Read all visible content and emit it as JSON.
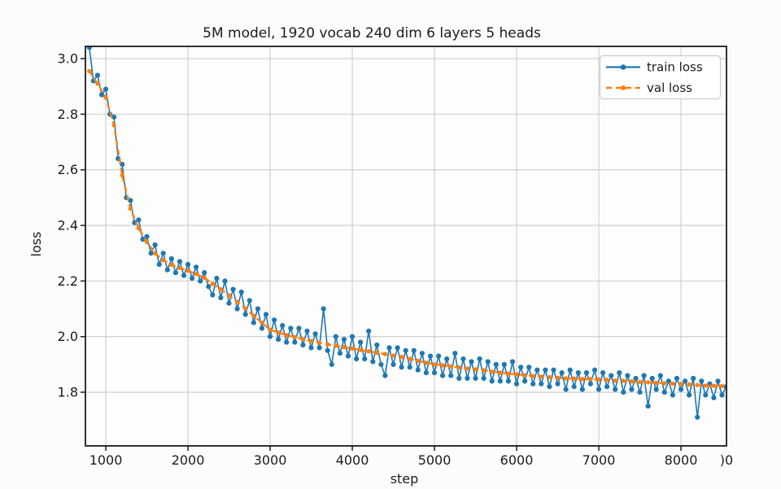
{
  "chart_data": {
    "type": "line",
    "title": "5M model, 1920 vocab 240 dim 6 layers 5 heads",
    "xlabel": "step",
    "ylabel": "loss",
    "xlim": [
      752,
      8554
    ],
    "ylim": [
      1.607,
      3.044
    ],
    "x_ticks": [
      1000,
      2000,
      3000,
      4000,
      5000,
      6000,
      7000,
      8000
    ],
    "x_tick_clipped_label": ")0",
    "y_ticks": [
      1.8,
      2.0,
      2.2,
      2.4,
      2.6,
      2.8,
      3.0
    ],
    "grid": true,
    "grid_color": "#cccccc",
    "spine_color": "#1c1c1c",
    "legend": {
      "position": "upper right",
      "entries": [
        "train loss",
        "val loss"
      ]
    },
    "series": [
      {
        "name": "train loss",
        "color": "#1f77b4",
        "line_style": "solid",
        "marker": "circle",
        "points": [
          [
            800,
            3.04
          ],
          [
            850,
            2.92
          ],
          [
            900,
            2.94
          ],
          [
            950,
            2.87
          ],
          [
            1000,
            2.89
          ],
          [
            1050,
            2.8
          ],
          [
            1100,
            2.79
          ],
          [
            1150,
            2.64
          ],
          [
            1200,
            2.62
          ],
          [
            1250,
            2.5
          ],
          [
            1300,
            2.49
          ],
          [
            1350,
            2.41
          ],
          [
            1400,
            2.42
          ],
          [
            1450,
            2.35
          ],
          [
            1500,
            2.36
          ],
          [
            1550,
            2.3
          ],
          [
            1600,
            2.33
          ],
          [
            1650,
            2.26
          ],
          [
            1700,
            2.3
          ],
          [
            1750,
            2.24
          ],
          [
            1800,
            2.28
          ],
          [
            1850,
            2.23
          ],
          [
            1900,
            2.27
          ],
          [
            1950,
            2.22
          ],
          [
            2000,
            2.26
          ],
          [
            2050,
            2.21
          ],
          [
            2100,
            2.25
          ],
          [
            2150,
            2.2
          ],
          [
            2200,
            2.23
          ],
          [
            2250,
            2.18
          ],
          [
            2300,
            2.15
          ],
          [
            2350,
            2.21
          ],
          [
            2400,
            2.14
          ],
          [
            2450,
            2.2
          ],
          [
            2500,
            2.12
          ],
          [
            2550,
            2.17
          ],
          [
            2600,
            2.1
          ],
          [
            2650,
            2.16
          ],
          [
            2700,
            2.08
          ],
          [
            2750,
            2.13
          ],
          [
            2800,
            2.05
          ],
          [
            2850,
            2.1
          ],
          [
            2900,
            2.03
          ],
          [
            2950,
            2.08
          ],
          [
            3000,
            2.0
          ],
          [
            3050,
            2.06
          ],
          [
            3100,
            1.99
          ],
          [
            3150,
            2.04
          ],
          [
            3200,
            1.98
          ],
          [
            3250,
            2.03
          ],
          [
            3300,
            1.98
          ],
          [
            3350,
            2.03
          ],
          [
            3400,
            1.97
          ],
          [
            3450,
            2.02
          ],
          [
            3500,
            1.96
          ],
          [
            3550,
            2.01
          ],
          [
            3600,
            1.96
          ],
          [
            3650,
            2.1
          ],
          [
            3700,
            1.95
          ],
          [
            3750,
            1.9
          ],
          [
            3800,
            2.0
          ],
          [
            3850,
            1.94
          ],
          [
            3900,
            1.99
          ],
          [
            3950,
            1.93
          ],
          [
            4000,
            2.0
          ],
          [
            4050,
            1.92
          ],
          [
            4100,
            1.98
          ],
          [
            4150,
            1.92
          ],
          [
            4200,
            2.02
          ],
          [
            4250,
            1.91
          ],
          [
            4300,
            1.97
          ],
          [
            4350,
            1.9
          ],
          [
            4400,
            1.86
          ],
          [
            4450,
            1.96
          ],
          [
            4500,
            1.9
          ],
          [
            4550,
            1.96
          ],
          [
            4600,
            1.89
          ],
          [
            4650,
            1.95
          ],
          [
            4700,
            1.89
          ],
          [
            4750,
            1.95
          ],
          [
            4800,
            1.88
          ],
          [
            4850,
            1.94
          ],
          [
            4900,
            1.87
          ],
          [
            4950,
            1.93
          ],
          [
            5000,
            1.87
          ],
          [
            5050,
            1.93
          ],
          [
            5100,
            1.86
          ],
          [
            5150,
            1.92
          ],
          [
            5200,
            1.86
          ],
          [
            5250,
            1.94
          ],
          [
            5300,
            1.85
          ],
          [
            5350,
            1.92
          ],
          [
            5400,
            1.85
          ],
          [
            5450,
            1.91
          ],
          [
            5500,
            1.85
          ],
          [
            5550,
            1.92
          ],
          [
            5600,
            1.85
          ],
          [
            5650,
            1.91
          ],
          [
            5700,
            1.84
          ],
          [
            5750,
            1.9
          ],
          [
            5800,
            1.84
          ],
          [
            5850,
            1.9
          ],
          [
            5900,
            1.84
          ],
          [
            5950,
            1.91
          ],
          [
            6000,
            1.83
          ],
          [
            6050,
            1.89
          ],
          [
            6100,
            1.84
          ],
          [
            6150,
            1.89
          ],
          [
            6200,
            1.83
          ],
          [
            6250,
            1.88
          ],
          [
            6300,
            1.83
          ],
          [
            6350,
            1.88
          ],
          [
            6400,
            1.82
          ],
          [
            6450,
            1.88
          ],
          [
            6500,
            1.83
          ],
          [
            6550,
            1.87
          ],
          [
            6600,
            1.81
          ],
          [
            6650,
            1.88
          ],
          [
            6700,
            1.82
          ],
          [
            6750,
            1.87
          ],
          [
            6800,
            1.81
          ],
          [
            6850,
            1.87
          ],
          [
            6900,
            1.83
          ],
          [
            6950,
            1.88
          ],
          [
            7000,
            1.81
          ],
          [
            7050,
            1.87
          ],
          [
            7100,
            1.82
          ],
          [
            7150,
            1.86
          ],
          [
            7200,
            1.81
          ],
          [
            7250,
            1.87
          ],
          [
            7300,
            1.8
          ],
          [
            7350,
            1.86
          ],
          [
            7400,
            1.81
          ],
          [
            7450,
            1.85
          ],
          [
            7500,
            1.8
          ],
          [
            7550,
            1.86
          ],
          [
            7600,
            1.75
          ],
          [
            7650,
            1.85
          ],
          [
            7700,
            1.81
          ],
          [
            7750,
            1.86
          ],
          [
            7800,
            1.8
          ],
          [
            7850,
            1.84
          ],
          [
            7900,
            1.79
          ],
          [
            7950,
            1.85
          ],
          [
            8000,
            1.81
          ],
          [
            8050,
            1.84
          ],
          [
            8100,
            1.79
          ],
          [
            8150,
            1.85
          ],
          [
            8200,
            1.71
          ],
          [
            8250,
            1.84
          ],
          [
            8300,
            1.79
          ],
          [
            8350,
            1.83
          ],
          [
            8400,
            1.78
          ],
          [
            8450,
            1.84
          ],
          [
            8500,
            1.79
          ],
          [
            8550,
            1.82
          ]
        ]
      },
      {
        "name": "val loss",
        "color": "#ff7f0e",
        "line_style": "dashed",
        "marker": "circle",
        "points": [
          [
            800,
            2.955
          ],
          [
            900,
            2.91
          ],
          [
            1000,
            2.86
          ],
          [
            1100,
            2.76
          ],
          [
            1200,
            2.58
          ],
          [
            1300,
            2.46
          ],
          [
            1400,
            2.39
          ],
          [
            1500,
            2.34
          ],
          [
            1600,
            2.3
          ],
          [
            1700,
            2.275
          ],
          [
            1800,
            2.258
          ],
          [
            1900,
            2.247
          ],
          [
            2000,
            2.237
          ],
          [
            2100,
            2.225
          ],
          [
            2200,
            2.212
          ],
          [
            2300,
            2.19
          ],
          [
            2400,
            2.17
          ],
          [
            2500,
            2.148
          ],
          [
            2600,
            2.125
          ],
          [
            2700,
            2.1
          ],
          [
            2800,
            2.075
          ],
          [
            2900,
            2.05
          ],
          [
            3000,
            2.025
          ],
          [
            3100,
            2.015
          ],
          [
            3200,
            2.005
          ],
          [
            3300,
            1.998
          ],
          [
            3400,
            1.99
          ],
          [
            3500,
            1.984
          ],
          [
            3600,
            1.978
          ],
          [
            3700,
            1.972
          ],
          [
            3800,
            1.967
          ],
          [
            3900,
            1.962
          ],
          [
            4000,
            1.957
          ],
          [
            4100,
            1.952
          ],
          [
            4200,
            1.947
          ],
          [
            4300,
            1.942
          ],
          [
            4400,
            1.937
          ],
          [
            4500,
            1.932
          ],
          [
            4600,
            1.927
          ],
          [
            4700,
            1.92
          ],
          [
            4800,
            1.913
          ],
          [
            4900,
            1.906
          ],
          [
            5000,
            1.9
          ],
          [
            5100,
            1.897
          ],
          [
            5200,
            1.893
          ],
          [
            5300,
            1.889
          ],
          [
            5400,
            1.885
          ],
          [
            5500,
            1.882
          ],
          [
            5600,
            1.879
          ],
          [
            5700,
            1.874
          ],
          [
            5800,
            1.87
          ],
          [
            5900,
            1.867
          ],
          [
            6000,
            1.864
          ],
          [
            6100,
            1.861
          ],
          [
            6200,
            1.858
          ],
          [
            6300,
            1.856
          ],
          [
            6400,
            1.854
          ],
          [
            6500,
            1.852
          ],
          [
            6600,
            1.85
          ],
          [
            6700,
            1.849
          ],
          [
            6800,
            1.848
          ],
          [
            6900,
            1.847
          ],
          [
            7000,
            1.846
          ],
          [
            7100,
            1.844
          ],
          [
            7200,
            1.842
          ],
          [
            7300,
            1.841
          ],
          [
            7400,
            1.839
          ],
          [
            7500,
            1.837
          ],
          [
            7600,
            1.836
          ],
          [
            7700,
            1.834
          ],
          [
            7800,
            1.832
          ],
          [
            7900,
            1.831
          ],
          [
            8000,
            1.83
          ],
          [
            8100,
            1.828
          ],
          [
            8200,
            1.826
          ],
          [
            8300,
            1.824
          ],
          [
            8400,
            1.823
          ],
          [
            8500,
            1.822
          ]
        ]
      }
    ]
  }
}
